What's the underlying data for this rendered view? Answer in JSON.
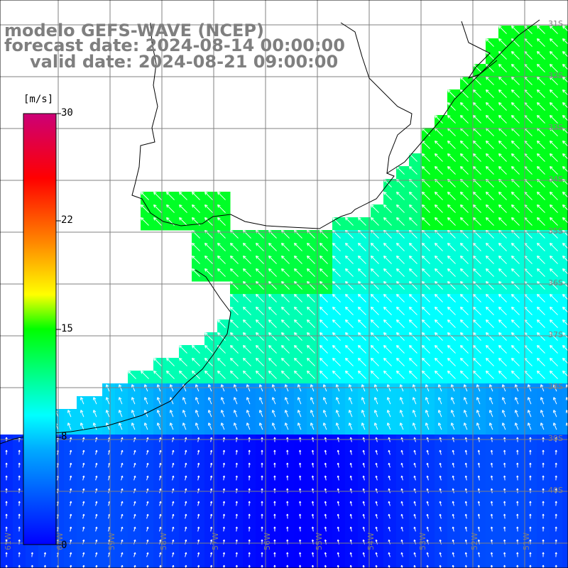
{
  "title": {
    "line1": "modelo GEFS-WAVE (NCEP)",
    "line2": "forecast date: 2024-08-14 00:00:00",
    "line3": "valid date: 2024-08-21 09:00:00"
  },
  "colorbar": {
    "units": "[m/s]",
    "ticks": [
      "30",
      "22",
      "15",
      "8",
      "0"
    ],
    "colors": [
      "#0000ff",
      "#00aaff",
      "#00ffff",
      "#00ff00",
      "#ffff00",
      "#ff8800",
      "#ff0000",
      "#cc0077"
    ]
  },
  "lat_labels": [
    "31S",
    "32S",
    "33S",
    "34S",
    "35S",
    "36S",
    "37S",
    "38S",
    "39S",
    "40S"
  ],
  "lon_labels": [
    "61W",
    "60W",
    "59W",
    "58W",
    "57W",
    "56W",
    "55W",
    "54W",
    "53W",
    "52W",
    "51W"
  ],
  "colors": {
    "land": "#ffffff",
    "coast": "#000000",
    "grid": "#808080",
    "arrow": "#ffffff",
    "label": "#7f7f7f"
  }
}
